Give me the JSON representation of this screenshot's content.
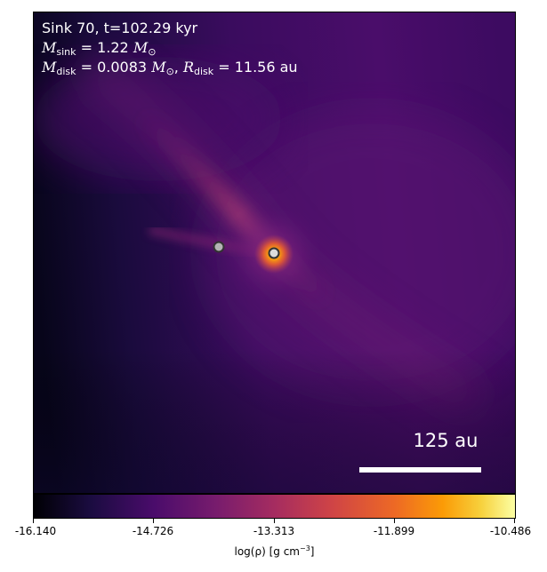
{
  "annotation": {
    "line1": "Sink 70, t=102.29 kyr",
    "msink_symbol": "M",
    "msink_sub": "sink",
    "msink_value": " = 1.22 ",
    "msun_symbol": "M",
    "msun_sub": "⊙",
    "mdisk_symbol": "M",
    "mdisk_sub": "disk",
    "mdisk_value": " = 0.0083 ",
    "msun2_symbol": "M",
    "msun2_sub": "⊙",
    "rdisk_sep": ", ",
    "rdisk_symbol": "R",
    "rdisk_sub": "disk",
    "rdisk_value": " = 11.56 au"
  },
  "scale_bar": {
    "label": "125 au"
  },
  "colorbar": {
    "ticks": [
      "-16.140",
      "-14.726",
      "-13.313",
      "-11.899",
      "-10.486"
    ],
    "label_prefix": "log(ρ) [g cm",
    "label_exp": "−3",
    "label_suffix": "]",
    "colormap": "inferno"
  },
  "colors": {
    "background_dark": "#000004",
    "filament": "#c7437a",
    "sink_core": "#fca50a"
  }
}
